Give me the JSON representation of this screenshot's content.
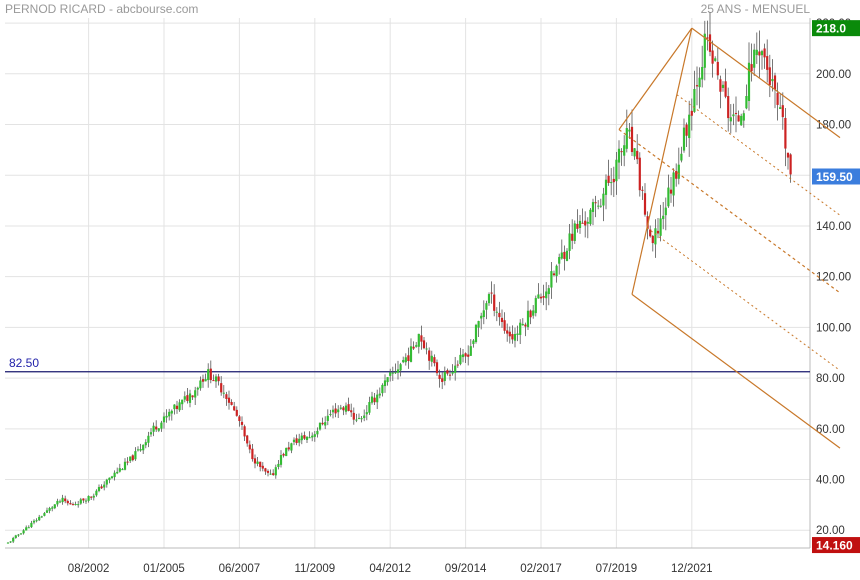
{
  "header": {
    "title": "PERNOD RICARD - abcbourse.com",
    "period": "25 ANS - MENSUEL"
  },
  "colors": {
    "up": "#33bb33",
    "down": "#cc2222",
    "wick": "#555555",
    "grid": "#e3e3e3",
    "support": "#1a1a6e",
    "channel": "#c8782a",
    "badge_high": "#0a8a0a",
    "badge_last": "#3b7ddd",
    "badge_low": "#c01010"
  },
  "chart_data": {
    "type": "candlestick",
    "title": "PERNOD RICARD - abcbourse.com",
    "subtitle": "25 ANS - MENSUEL",
    "ylim": [
      13,
      222
    ],
    "y_ticks": [
      20,
      40,
      60,
      80,
      100,
      120,
      140,
      160,
      180,
      200,
      220
    ],
    "y_tick_labels": [
      "20.00",
      "40.00",
      "60.00",
      "80.00",
      "100.00",
      "120.00",
      "140.00",
      "160.00",
      "180.00",
      "200.00",
      "220.00"
    ],
    "x_tick_labels": [
      "08/2002",
      "01/2005",
      "06/2007",
      "11/2009",
      "04/2012",
      "09/2014",
      "02/2017",
      "07/2019",
      "12/2021"
    ],
    "grid": true,
    "support_line": {
      "value": 82.5,
      "label": "82.50"
    },
    "badges": {
      "high": "218.0",
      "last": "159.50",
      "low": "14.160"
    },
    "pitchfork": {
      "pivots": [
        {
          "date": "08/2019",
          "price": 178
        },
        {
          "date": "12/2021",
          "price": 218
        },
        {
          "date": "01/2020",
          "price": 113
        }
      ]
    },
    "series": [
      {
        "date_start": "01/2000",
        "month_count": 302,
        "closes": [
          [
            15,
            17.5,
            20,
            22.5,
            25,
            27.5,
            30,
            32,
            30,
            31,
            32.5,
            34,
            37,
            40,
            43,
            45.5,
            48.5,
            52,
            57,
            61,
            63,
            66.5,
            69,
            72,
            75,
            80,
            82,
            78,
            74.5,
            68,
            62,
            52,
            47,
            43,
            41,
            48,
            52,
            55,
            56.5,
            57,
            60,
            64,
            67,
            68.5,
            68,
            63,
            66,
            71,
            75,
            79,
            83,
            87,
            90,
            98,
            92,
            84.5,
            80,
            83,
            86,
            88,
            95,
            104,
            113,
            108,
            100,
            96,
            99,
            104,
            110,
            113,
            118,
            125,
            132,
            138,
            141,
            143.5,
            148.5,
            154,
            160,
            168,
            176,
            165,
            150,
            130,
            140,
            150,
            160,
            172,
            185,
            200,
            212,
            205,
            195,
            185,
            180,
            190,
            205,
            212,
            202,
            190,
            178,
            160
          ]
        ]
      }
    ]
  }
}
